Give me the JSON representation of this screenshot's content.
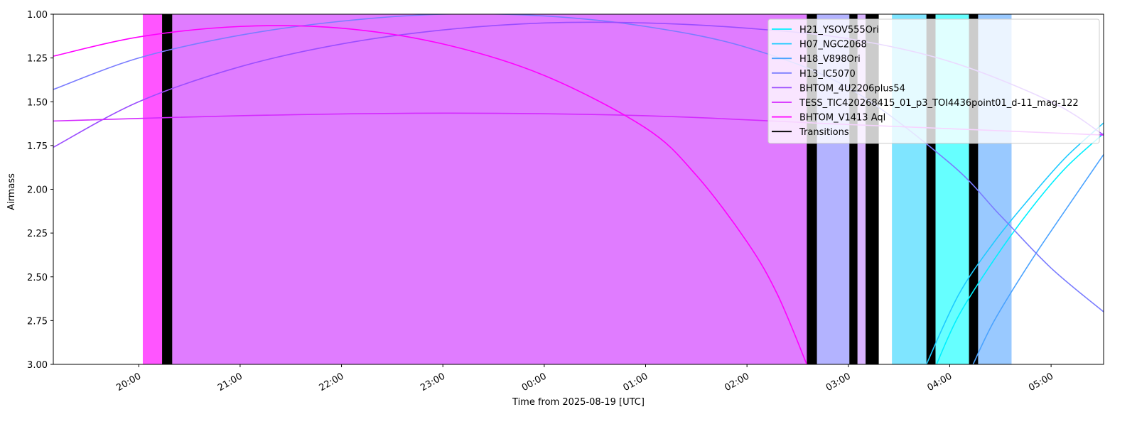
{
  "chart_data": {
    "type": "line",
    "xlabel": "Time from 2025-08-19 [UTC]",
    "ylabel": "Airmass",
    "xlim": [
      19.157,
      29.518
    ],
    "ylim": [
      3.0,
      1.0
    ],
    "xticks": [
      {
        "value": 20,
        "label": "20:00"
      },
      {
        "value": 21,
        "label": "21:00"
      },
      {
        "value": 22,
        "label": "22:00"
      },
      {
        "value": 23,
        "label": "23:00"
      },
      {
        "value": 24,
        "label": "00:00"
      },
      {
        "value": 25,
        "label": "01:00"
      },
      {
        "value": 26,
        "label": "02:00"
      },
      {
        "value": 27,
        "label": "03:00"
      },
      {
        "value": 28,
        "label": "04:00"
      },
      {
        "value": 29,
        "label": "05:00"
      }
    ],
    "yticks": [
      {
        "value": 1.0,
        "label": "1.00"
      },
      {
        "value": 1.25,
        "label": "1.25"
      },
      {
        "value": 1.5,
        "label": "1.50"
      },
      {
        "value": 1.75,
        "label": "1.75"
      },
      {
        "value": 2.0,
        "label": "2.00"
      },
      {
        "value": 2.25,
        "label": "2.25"
      },
      {
        "value": 2.5,
        "label": "2.50"
      },
      {
        "value": 2.75,
        "label": "2.75"
      },
      {
        "value": 3.0,
        "label": "3.00"
      }
    ],
    "legend": "upper right",
    "spans": [
      {
        "start": 20.04,
        "end": 20.23,
        "color": "#ff55ff"
      },
      {
        "start": 20.33,
        "end": 26.59,
        "color": "#e07cff"
      },
      {
        "start": 26.69,
        "end": 27.01,
        "color": "#b3b3ff"
      },
      {
        "start": 27.09,
        "end": 27.17,
        "color": "#d9b3ff"
      },
      {
        "start": 27.43,
        "end": 27.77,
        "color": "#7fe5ff"
      },
      {
        "start": 27.86,
        "end": 28.19,
        "color": "#66ffff"
      },
      {
        "start": 28.28,
        "end": 28.61,
        "color": "#99c9ff"
      }
    ],
    "transitions": {
      "name": "Transitions",
      "color": "#000000",
      "spans": [
        [
          20.23,
          20.33
        ],
        [
          26.59,
          26.69
        ],
        [
          27.01,
          27.09
        ],
        [
          27.17,
          27.3
        ],
        [
          27.77,
          27.86
        ],
        [
          28.19,
          28.28
        ]
      ]
    },
    "series": [
      {
        "name": "H21_YSOV555Ori",
        "color": "#00f0ff",
        "x": [
          27.87,
          28.09,
          28.44,
          28.79,
          29.14,
          29.52
        ],
        "values": [
          3.0,
          2.72,
          2.4,
          2.12,
          1.88,
          1.68
        ]
      },
      {
        "name": "H07_NGC2068",
        "color": "#1ecbff",
        "x": [
          27.77,
          28.09,
          28.44,
          28.79,
          29.14,
          29.52
        ],
        "values": [
          3.0,
          2.6,
          2.3,
          2.05,
          1.82,
          1.62
        ]
      },
      {
        "name": "H18_V898Ori",
        "color": "#4ba3ff",
        "x": [
          28.23,
          28.44,
          28.79,
          29.14,
          29.52
        ],
        "values": [
          3.0,
          2.75,
          2.42,
          2.12,
          1.8
        ]
      },
      {
        "name": "H13_IC5070",
        "color": "#7a7cff",
        "x": [
          19.157,
          20,
          21,
          22,
          23,
          24,
          25,
          26,
          27,
          28,
          28.5,
          29,
          29.518
        ],
        "values": [
          1.43,
          1.25,
          1.12,
          1.04,
          1.0,
          1.01,
          1.07,
          1.19,
          1.42,
          1.85,
          2.15,
          2.45,
          2.7
        ]
      },
      {
        "name": "BHTOM_4U2206plus54",
        "color": "#9b4dff",
        "x": [
          19.157,
          20,
          21,
          22,
          23,
          24,
          25,
          26,
          27,
          28,
          29,
          29.518
        ],
        "values": [
          1.76,
          1.5,
          1.3,
          1.17,
          1.09,
          1.05,
          1.05,
          1.08,
          1.14,
          1.27,
          1.5,
          1.69
        ]
      },
      {
        "name": "TESS_TIC420268415_01_p3_TOI4436point01_d-11_mag-122",
        "color": "#d42aff",
        "x": [
          19.157,
          21,
          23,
          25,
          27,
          29.518
        ],
        "values": [
          1.61,
          1.58,
          1.565,
          1.58,
          1.63,
          1.69
        ]
      },
      {
        "name": "BHTOM_V1413 Aql",
        "color": "#ff00ff",
        "x": [
          19.157,
          20,
          21,
          22,
          23,
          24,
          25,
          25.5,
          26,
          26.3,
          26.59
        ],
        "values": [
          1.24,
          1.13,
          1.07,
          1.08,
          1.17,
          1.35,
          1.65,
          1.92,
          2.3,
          2.6,
          3.0
        ]
      }
    ]
  }
}
